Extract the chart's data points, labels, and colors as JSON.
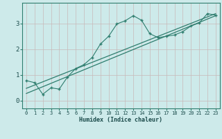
{
  "xlabel": "Humidex (Indice chaleur)",
  "bg_color": "#cdeaea",
  "line_color": "#2e7d6e",
  "grid_color": "#c8b8b8",
  "xlim": [
    -0.5,
    23.5
  ],
  "ylim": [
    -0.3,
    3.8
  ],
  "xticks": [
    0,
    1,
    2,
    3,
    4,
    5,
    6,
    7,
    8,
    9,
    10,
    11,
    12,
    13,
    14,
    15,
    16,
    17,
    18,
    19,
    20,
    21,
    22,
    23
  ],
  "yticks": [
    0,
    1,
    2,
    3
  ],
  "curve_x": [
    0,
    1,
    2,
    3,
    4,
    5,
    6,
    7,
    8,
    9,
    10,
    11,
    12,
    13,
    14,
    15,
    16,
    17,
    18,
    19,
    20,
    21,
    22,
    23
  ],
  "curve_y": [
    0.78,
    0.7,
    0.25,
    0.5,
    0.45,
    0.92,
    1.25,
    1.4,
    1.68,
    2.2,
    2.5,
    2.98,
    3.1,
    3.3,
    3.12,
    2.6,
    2.45,
    2.5,
    2.55,
    2.68,
    2.9,
    3.02,
    3.38,
    3.32
  ],
  "line1_x": [
    0,
    23
  ],
  "line1_y": [
    0.28,
    3.3
  ],
  "line2_x": [
    0,
    23
  ],
  "line2_y": [
    0.48,
    3.38
  ],
  "xlabel_fontsize": 6.0,
  "tick_fontsize": 5.0
}
